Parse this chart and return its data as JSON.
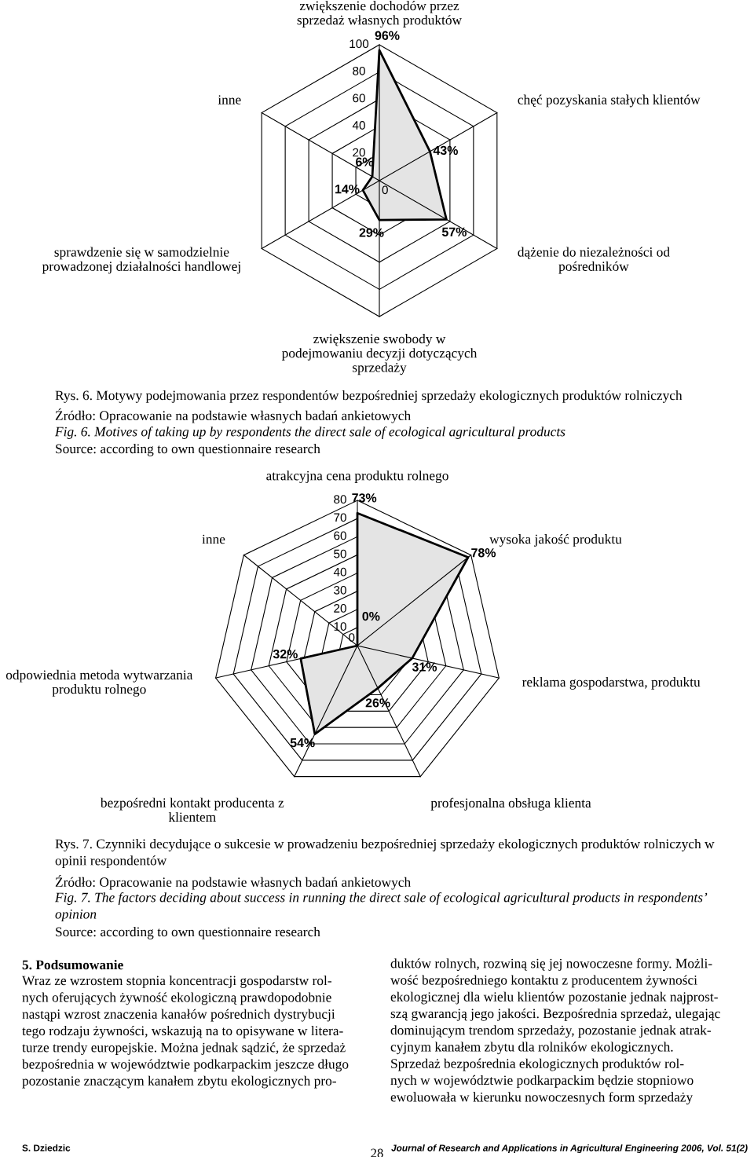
{
  "chart_data": [
    {
      "type": "radar",
      "grid": true,
      "ylim": [
        0,
        100
      ],
      "yticks": [
        0,
        20,
        40,
        60,
        80,
        100
      ],
      "categories": [
        "zwiększenie dochodów przez\nsprzedaż własnych produktów",
        "chęć pozyskania stałych klientów",
        "dążenie do niezależności od\npośredników",
        "zwiększenie swobody w\npodejmowaniu decyzji dotyczących\nsprzedaży",
        "sprawdzenie się w samodzielnie\nprowadzonej działalności handlowej",
        "inne"
      ],
      "series": [
        {
          "color": "#000000",
          "values": [
            96,
            43,
            57,
            29,
            14,
            6
          ],
          "value_labels": [
            "96%",
            "43%",
            "57%",
            "29%",
            "14%",
            "6%"
          ]
        }
      ],
      "annotations": [
        "Rys. 6. Motywy podejmowania przez respondentów bezpośredniej sprzedaży ekologicznych produktów rolniczych",
        "Źródło: Opracowanie na podstawie własnych badań ankietowych",
        "Fig. 6. Motives of taking up by respondents the direct sale of ecological agricultural products",
        "Source: according to own questionnaire research"
      ]
    },
    {
      "type": "radar",
      "grid": true,
      "ylim": [
        0,
        80
      ],
      "yticks": [
        0,
        10,
        20,
        30,
        40,
        50,
        60,
        70,
        80
      ],
      "categories": [
        "atrakcyjna cena produktu rolnego",
        "wysoka jakość produktu",
        "reklama gospodarstwa, produktu",
        "profesjonalna obsługa klienta",
        "bezpośredni kontakt producenta z\nklientem",
        "odpowiednia metoda wytwarzania\nproduktu rolnego",
        "inne"
      ],
      "series": [
        {
          "color": "#000000",
          "values": [
            73,
            78,
            31,
            26,
            54,
            32,
            0
          ],
          "value_labels": [
            "73%",
            "78%",
            "31%",
            "26%",
            "54%",
            "32%",
            "0%"
          ]
        }
      ],
      "annotations": [
        "Rys. 7. Czynniki decydujące o sukcesie w prowadzeniu bezpośredniej sprzedaży ekologicznych produktów rolniczych w\nopinii respondentów",
        "Źródło: Opracowanie na podstawie własnych badań ankietowych",
        "Fig. 7. The factors deciding about success in running the direct sale of ecological agricultural products in respondents’\nopinion",
        "Source: according to own questionnaire research",
        "5. Podsumowanie",
        "Wraz ze wzrostem stopnia koncentracji gospodarstw rol-\nnych oferujących żywność ekologiczną prawdopodobnie\nnastąpi wzrost znaczenia kanałów pośrednich dystrybucji\ntego rodzaju żywności, wskazują na to opisywane w litera-\nturze trendy europejskie. Można jednak sądzić, że sprzedaż\nbezpośrednia w województwie podkarpackim jeszcze długo\npozostanie znaczącym kanałem zbytu ekologicznych pro-",
        "duktów rolnych, rozwiną się jej nowoczesne formy. Możli-\nwość bezpośredniego kontaktu z producentem żywności\nekologicznej dla wielu klientów pozostanie jednak najprost-\nszą gwarancją jego jakości. Bezpośrednia sprzedaż, ulegając\ndominującym trendom sprzedaży, pozostanie jednak atrak-\ncyjnym kanałem zbytu dla rolników ekologicznych.\nSprzedaż bezpośrednia ekologicznych produktów rol-\nnych w województwie podkarpackim będzie stopniowo\newoluowała w kierunku nowoczesnych form sprzedaży",
        "S. Dziedzic",
        "28",
        "Journal of Research and Applications in Agricultural Engineering 2006, Vol. 51(2)"
      ]
    }
  ]
}
